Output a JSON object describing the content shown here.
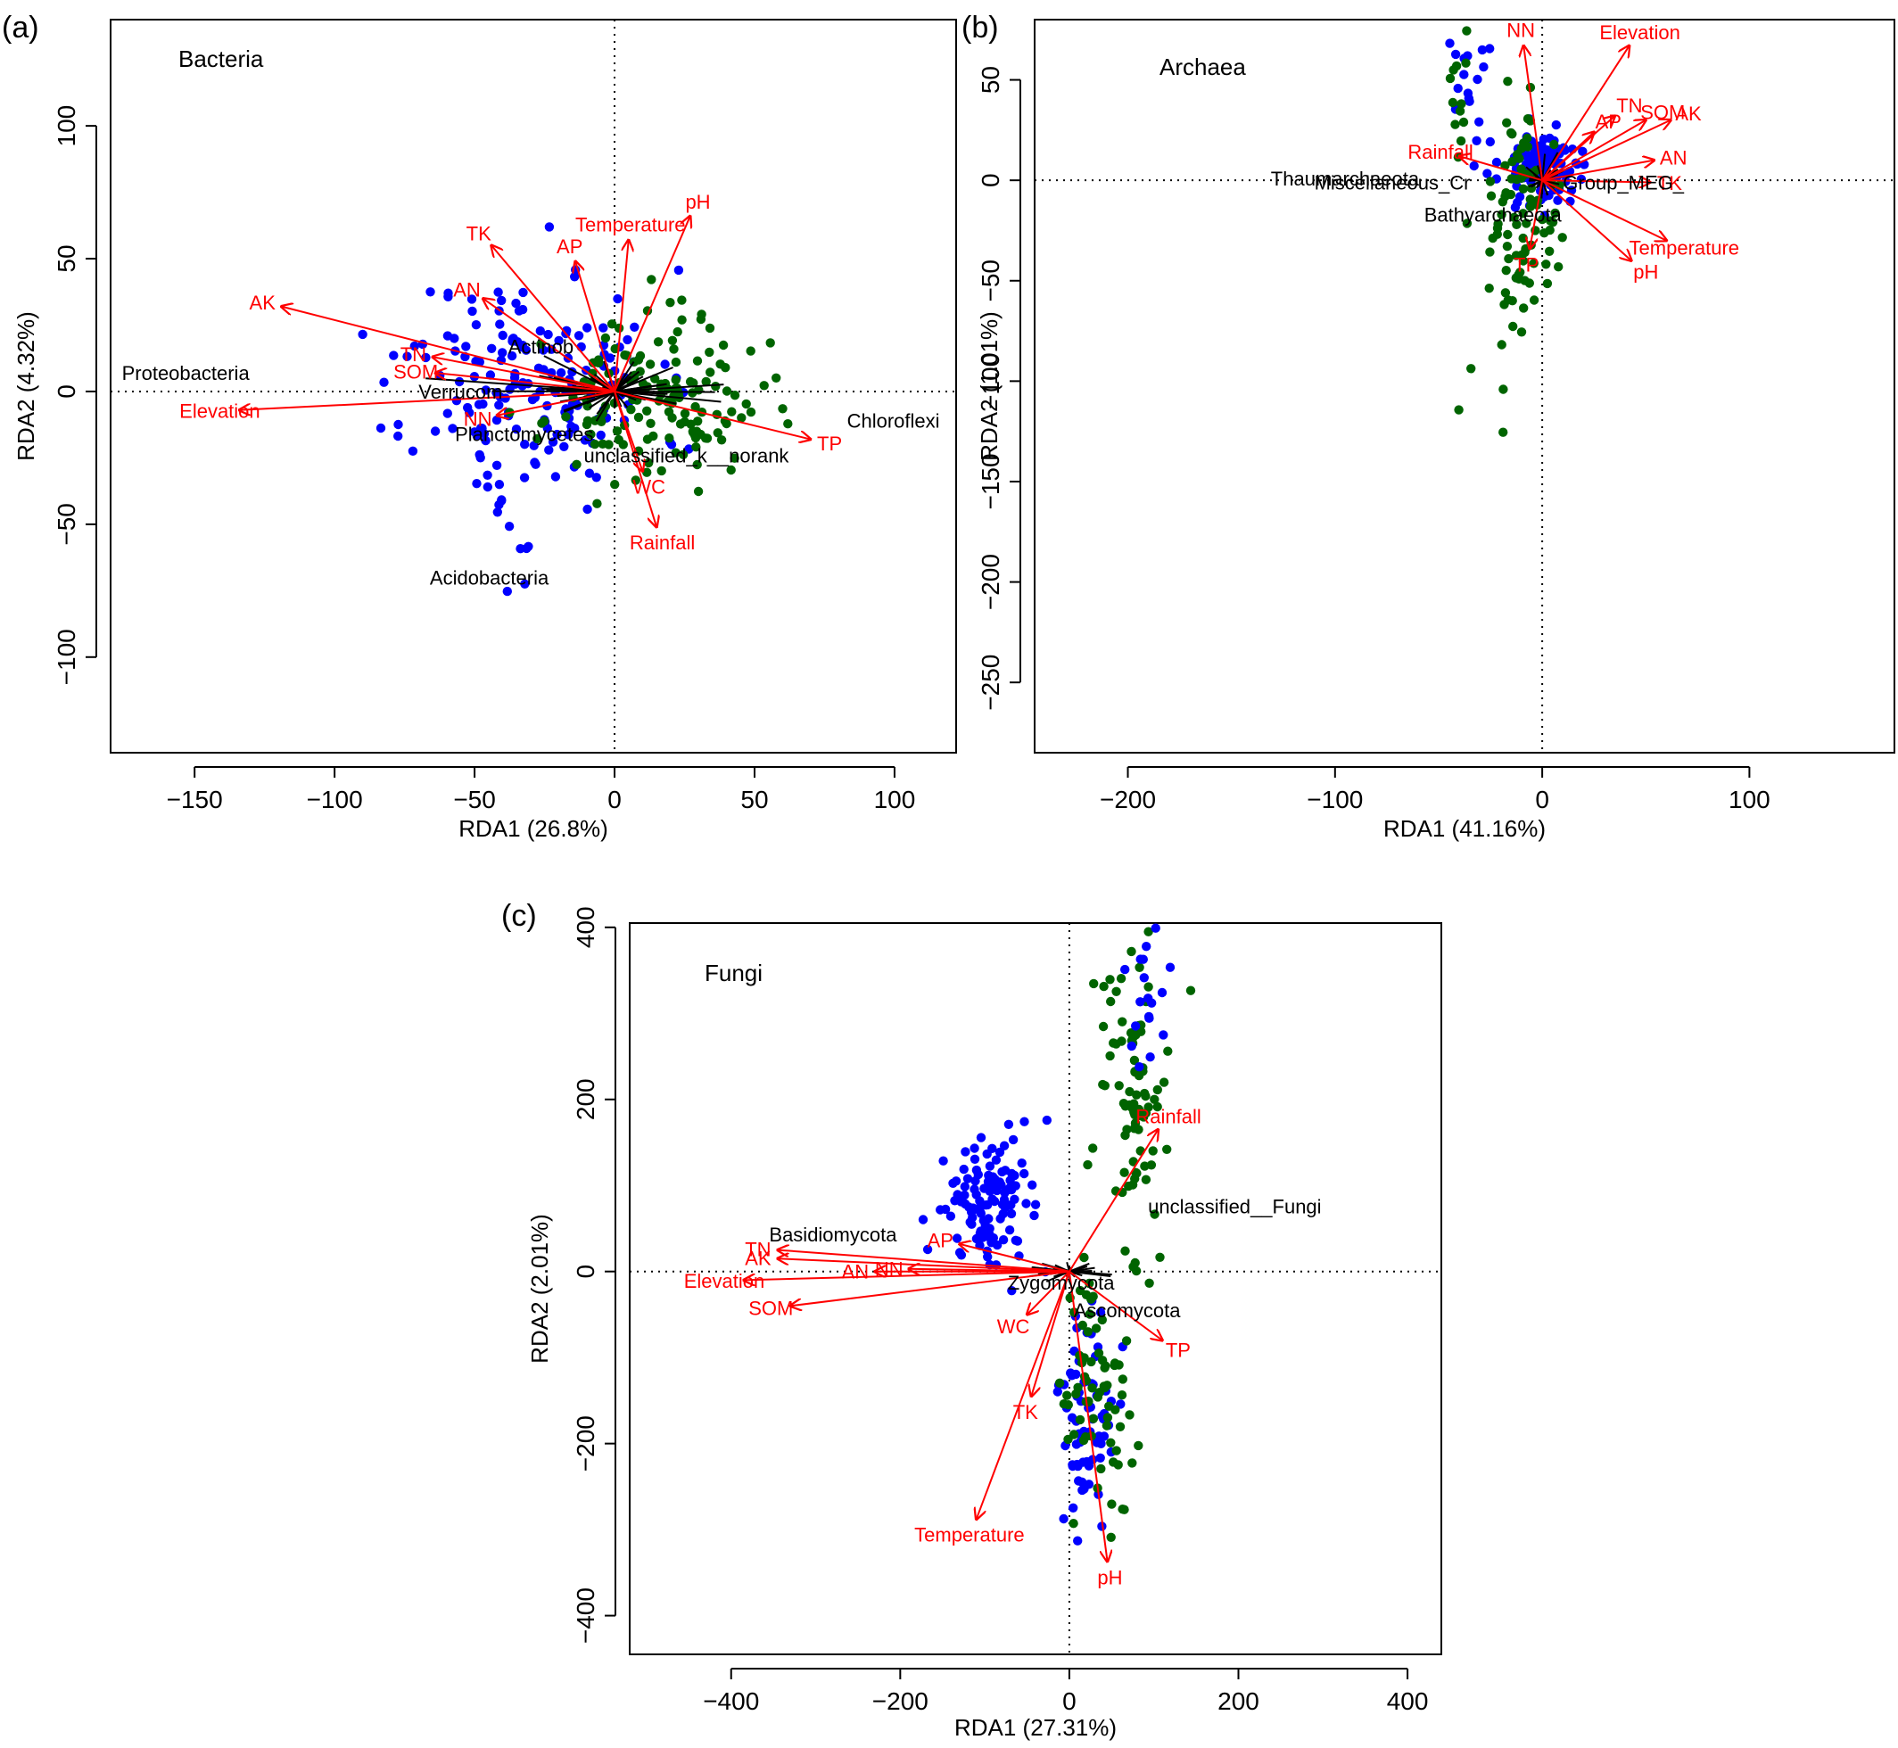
{
  "colors": {
    "arrow": "#ff0000",
    "point_a": "#0000ff",
    "point_b": "#006400",
    "axis": "#000000"
  },
  "chart_data": [
    {
      "type": "scatter",
      "panel_label": "(a)",
      "title": "Bacteria",
      "xlabel": "RDA1 (26.8%)",
      "ylabel": "RDA2 (4.32%)",
      "xlim": [
        -180,
        122
      ],
      "ylim": [
        -136,
        140
      ],
      "xticks": [
        -150,
        -100,
        -50,
        0,
        50,
        100
      ],
      "yticks": [
        -100,
        -50,
        0,
        50,
        100
      ],
      "grid": false,
      "zero_lines": true,
      "taxa": [
        {
          "label": "Proteobacteria",
          "x": -176,
          "y": 7
        },
        {
          "label": "Actinob",
          "x": -38,
          "y": 17
        },
        {
          "label": "Verrucom",
          "x": -70,
          "y": 0
        },
        {
          "label": "Chloroflexi",
          "x": 83,
          "y": -11
        },
        {
          "label": "Planctomycetes",
          "x": -57,
          "y": -16
        },
        {
          "label": "unclassified_k__norank",
          "x": -11,
          "y": -24
        },
        {
          "label": "Acidobacteria",
          "x": -66,
          "y": -70
        }
      ],
      "vectors": [
        {
          "label": "AK",
          "x": -119,
          "y": 32
        },
        {
          "label": "TK",
          "x": -44,
          "y": 55
        },
        {
          "label": "AN",
          "x": -47,
          "y": 35
        },
        {
          "label": "TN",
          "x": -65,
          "y": 13
        },
        {
          "label": "SOM",
          "x": -64,
          "y": 7
        },
        {
          "label": "Elevation",
          "x": -134,
          "y": -7
        },
        {
          "label": "AP",
          "x": -14,
          "y": 49
        },
        {
          "label": "Temperature",
          "x": 5,
          "y": 57
        },
        {
          "label": "pH",
          "x": 27,
          "y": 66
        },
        {
          "label": "TP",
          "x": 70,
          "y": -18
        },
        {
          "label": "WC",
          "x": 10,
          "y": -30
        },
        {
          "label": "Rainfall",
          "x": 15,
          "y": -51
        },
        {
          "label": "NN",
          "x": -42,
          "y": -9
        }
      ]
    },
    {
      "type": "scatter",
      "panel_label": "(b)",
      "title": "Archaea",
      "xlabel": "RDA1 (41.16%)",
      "ylabel": "RDA2 (1.01%)",
      "xlim": [
        -245,
        170
      ],
      "ylim": [
        -285,
        80
      ],
      "xticks": [
        -200,
        -100,
        0,
        100
      ],
      "yticks": [
        -250,
        -200,
        -150,
        -100,
        -50,
        0,
        50
      ],
      "grid": false,
      "zero_lines": true,
      "taxa": [
        {
          "label": "Thaumarchaeota",
          "x": -131,
          "y": 1
        },
        {
          "label": "Miscellaneous_Cr",
          "x": -110,
          "y": -1
        },
        {
          "label": "Group_MEG_",
          "x": 10,
          "y": -1
        },
        {
          "label": "Bathyarchaeota",
          "x": -57,
          "y": -17
        }
      ],
      "vectors": [
        {
          "label": "NN",
          "x": -9,
          "y": 67
        },
        {
          "label": "Elevation",
          "x": 42,
          "y": 67
        },
        {
          "label": "TN",
          "x": 35,
          "y": 32
        },
        {
          "label": "SOM",
          "x": 50,
          "y": 30
        },
        {
          "label": "AK",
          "x": 62,
          "y": 30
        },
        {
          "label": "AP",
          "x": 25,
          "y": 24
        },
        {
          "label": "AN",
          "x": 54,
          "y": 10
        },
        {
          "label": "Rainfall",
          "x": -40,
          "y": 12
        },
        {
          "label": "TK",
          "x": 52,
          "y": -1
        },
        {
          "label": "Temperature",
          "x": 60,
          "y": -30
        },
        {
          "label": "pH",
          "x": 43,
          "y": -40
        },
        {
          "label": "TP",
          "x": -6,
          "y": -34
        }
      ]
    },
    {
      "type": "scatter",
      "panel_label": "(c)",
      "title": "Fungi",
      "xlabel": "RDA1 (27.31%)",
      "ylabel": "RDA2 (2.01%)",
      "xlim": [
        -520,
        440
      ],
      "ylim": [
        -445,
        405
      ],
      "xticks": [
        -400,
        -200,
        0,
        200,
        400
      ],
      "yticks": [
        -400,
        -200,
        0,
        200,
        400
      ],
      "grid": false,
      "zero_lines": true,
      "taxa": [
        {
          "label": "Basidiomycota",
          "x": -355,
          "y": 43
        },
        {
          "label": "unclassified__Fungi",
          "x": 93,
          "y": 76
        },
        {
          "label": "Ascomycota",
          "x": 5,
          "y": -45
        },
        {
          "label": "Zygomycota",
          "x": -73,
          "y": -13
        }
      ],
      "vectors": [
        {
          "label": "TN",
          "x": -345,
          "y": 25
        },
        {
          "label": "AK",
          "x": -345,
          "y": 15
        },
        {
          "label": "Elevation",
          "x": -385,
          "y": -10
        },
        {
          "label": "SOM",
          "x": -330,
          "y": -40
        },
        {
          "label": "AN",
          "x": -230,
          "y": 0
        },
        {
          "label": "NN",
          "x": -190,
          "y": 3
        },
        {
          "label": "AP",
          "x": -130,
          "y": 32
        },
        {
          "label": "WC",
          "x": -50,
          "y": -50
        },
        {
          "label": "TK",
          "x": -45,
          "y": -145
        },
        {
          "label": "Temperature",
          "x": -110,
          "y": -288
        },
        {
          "label": "pH",
          "x": 45,
          "y": -337
        },
        {
          "label": "TP",
          "x": 110,
          "y": -80
        },
        {
          "label": "Rainfall",
          "x": 105,
          "y": 165
        }
      ]
    }
  ]
}
